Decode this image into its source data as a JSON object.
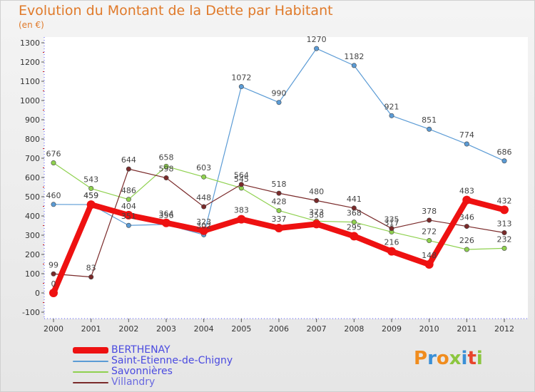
{
  "title": "Evolution du Montant de la Dette par Habitant",
  "subtitle": "(en €)",
  "logo": {
    "text": "Proxiti",
    "colors": [
      "#f08c1e",
      "#3a8fd6",
      "#f08c1e",
      "#8cc63f",
      "#3a8fd6",
      "#e8452c",
      "#8cc63f"
    ]
  },
  "chart_data": {
    "type": "line",
    "x": [
      "2000",
      "2001",
      "2002",
      "2003",
      "2004",
      "2005",
      "2006",
      "2007",
      "2008",
      "2009",
      "2010",
      "2011",
      "2012"
    ],
    "ylim": [
      -100,
      1300
    ],
    "yticks": [
      -100,
      0,
      100,
      200,
      300,
      400,
      500,
      600,
      700,
      800,
      900,
      1000,
      1100,
      1200,
      1300
    ],
    "grid": false,
    "legend_position": "bottom-left",
    "series": [
      {
        "name": "BERTHENAY",
        "color": "#ee1111",
        "values": [
          0,
          459,
          404,
          364,
          323,
          383,
          337,
          358,
          295,
          216,
          148,
          483,
          432
        ]
      },
      {
        "name": "Saint-Etienne-de-Chigny",
        "color": "#5b9bd5",
        "values": [
          460,
          459,
          351,
          356,
          302,
          1072,
          990,
          1270,
          1182,
          921,
          851,
          774,
          686
        ]
      },
      {
        "name": "Savonnières",
        "color": "#8fd14f",
        "values": [
          676,
          543,
          486,
          658,
          603,
          545,
          428,
          373,
          368,
          317,
          272,
          226,
          232
        ]
      },
      {
        "name": "Villandry",
        "color": "#7a2a2a",
        "values": [
          99,
          83,
          644,
          598,
          448,
          564,
          518,
          480,
          441,
          335,
          378,
          346,
          313
        ]
      }
    ]
  }
}
